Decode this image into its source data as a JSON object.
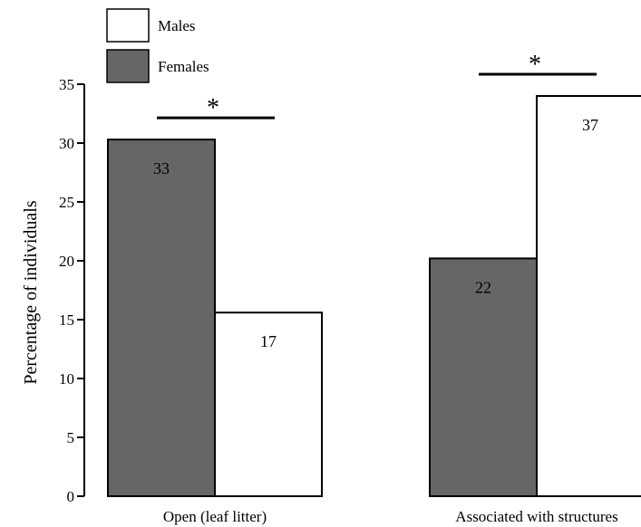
{
  "chart_data": {
    "type": "bar",
    "ylabel": "Percentage of individuals",
    "ylim": [
      0,
      35
    ],
    "yticks": [
      0,
      5,
      10,
      15,
      20,
      25,
      30,
      35
    ],
    "categories": [
      "Open (leaf litter)",
      "Associated with structures"
    ],
    "series": [
      {
        "name": "Females",
        "color": "#666666",
        "values": [
          30.3,
          20.2
        ],
        "labels": [
          "33",
          "22"
        ]
      },
      {
        "name": "Males",
        "color": "#ffffff",
        "values": [
          15.6,
          34.0
        ],
        "labels": [
          "17",
          "37"
        ]
      }
    ],
    "legend_order": [
      "Males",
      "Females"
    ],
    "legend_position": "top-left",
    "significance_marker": "*",
    "grid": false
  }
}
